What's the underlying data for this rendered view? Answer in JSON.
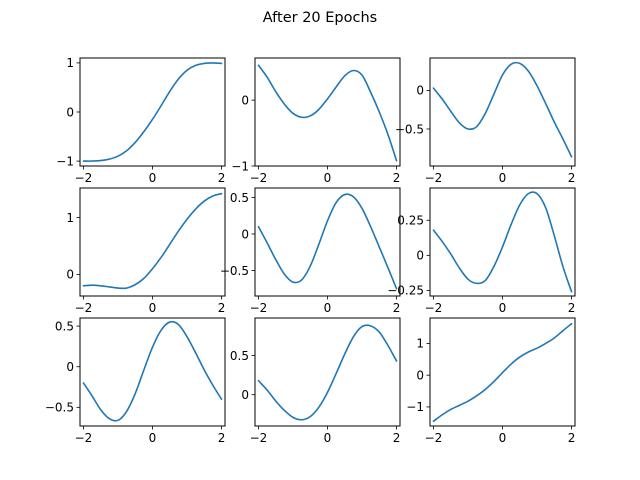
{
  "figure": {
    "title": "After 20 Epochs",
    "line_color": "#1f77b4"
  },
  "chart_data": [
    {
      "type": "line",
      "title": "",
      "xlabel": "",
      "ylabel": "",
      "xlim": [
        -2.1,
        2.1
      ],
      "ylim": [
        -1.1,
        1.1
      ],
      "xticks": [
        -2,
        0,
        2
      ],
      "yticks": [
        -1,
        0,
        1
      ],
      "series": [
        {
          "x": [
            -2,
            -1.75,
            -1.5,
            -1.25,
            -1,
            -0.75,
            -0.5,
            -0.25,
            0,
            0.25,
            0.5,
            0.75,
            1,
            1.25,
            1.5,
            1.75,
            2
          ],
          "y": [
            -1.0,
            -1.0,
            -0.99,
            -0.96,
            -0.9,
            -0.79,
            -0.62,
            -0.4,
            -0.15,
            0.13,
            0.42,
            0.67,
            0.85,
            0.95,
            0.99,
            1.0,
            0.99
          ]
        }
      ]
    },
    {
      "type": "line",
      "title": "",
      "xlabel": "",
      "ylabel": "",
      "xlim": [
        -2.1,
        2.1
      ],
      "ylim": [
        -1.0,
        0.64
      ],
      "xticks": [
        -2,
        0,
        2
      ],
      "yticks": [
        -1,
        0
      ],
      "series": [
        {
          "x": [
            -2,
            -1.75,
            -1.5,
            -1.25,
            -1,
            -0.75,
            -0.5,
            -0.25,
            0,
            0.25,
            0.5,
            0.75,
            1,
            1.25,
            1.5,
            1.75,
            2
          ],
          "y": [
            0.53,
            0.35,
            0.13,
            -0.06,
            -0.2,
            -0.26,
            -0.24,
            -0.14,
            0.02,
            0.2,
            0.37,
            0.45,
            0.38,
            0.12,
            -0.18,
            -0.52,
            -0.92
          ]
        }
      ]
    },
    {
      "type": "line",
      "title": "",
      "xlabel": "",
      "ylabel": "",
      "xlim": [
        -2.1,
        2.1
      ],
      "ylim": [
        -0.98,
        0.42
      ],
      "xticks": [
        -2,
        0,
        2
      ],
      "yticks": [
        -0.5,
        0.0
      ],
      "series": [
        {
          "x": [
            -2,
            -1.75,
            -1.5,
            -1.25,
            -1,
            -0.75,
            -0.5,
            -0.25,
            0,
            0.25,
            0.5,
            0.75,
            1,
            1.25,
            1.5,
            1.75,
            2
          ],
          "y": [
            0.03,
            -0.11,
            -0.27,
            -0.42,
            -0.5,
            -0.47,
            -0.3,
            -0.05,
            0.2,
            0.34,
            0.35,
            0.25,
            0.06,
            -0.17,
            -0.41,
            -0.63,
            -0.86
          ]
        }
      ]
    },
    {
      "type": "line",
      "title": "",
      "xlabel": "",
      "ylabel": "",
      "xlim": [
        -2.1,
        2.1
      ],
      "ylim": [
        -0.38,
        1.52
      ],
      "xticks": [
        -2,
        0,
        2
      ],
      "yticks": [
        0,
        1
      ],
      "series": [
        {
          "x": [
            -2,
            -1.75,
            -1.5,
            -1.25,
            -1,
            -0.75,
            -0.5,
            -0.25,
            0,
            0.25,
            0.5,
            0.75,
            1,
            1.25,
            1.5,
            1.75,
            2
          ],
          "y": [
            -0.2,
            -0.19,
            -0.2,
            -0.22,
            -0.24,
            -0.24,
            -0.18,
            -0.07,
            0.1,
            0.3,
            0.53,
            0.76,
            0.97,
            1.15,
            1.29,
            1.38,
            1.42
          ]
        }
      ]
    },
    {
      "type": "line",
      "title": "",
      "xlabel": "",
      "ylabel": "",
      "xlim": [
        -2.1,
        2.1
      ],
      "ylim": [
        -0.85,
        0.63
      ],
      "xticks": [
        -2,
        0,
        2
      ],
      "yticks": [
        -0.5,
        0.0,
        0.5
      ],
      "series": [
        {
          "x": [
            -2,
            -1.75,
            -1.5,
            -1.25,
            -1,
            -0.75,
            -0.5,
            -0.25,
            0,
            0.25,
            0.5,
            0.75,
            1,
            1.25,
            1.5,
            1.75,
            2
          ],
          "y": [
            0.1,
            -0.12,
            -0.35,
            -0.55,
            -0.66,
            -0.63,
            -0.44,
            -0.14,
            0.18,
            0.43,
            0.54,
            0.51,
            0.35,
            0.1,
            -0.18,
            -0.46,
            -0.75
          ]
        }
      ]
    },
    {
      "type": "line",
      "title": "",
      "xlabel": "",
      "ylabel": "",
      "xlim": [
        -2.1,
        2.1
      ],
      "ylim": [
        -0.29,
        0.48
      ],
      "xticks": [
        -2,
        0,
        2
      ],
      "yticks": [
        -0.25,
        0.0,
        0.25
      ],
      "series": [
        {
          "x": [
            -2,
            -1.75,
            -1.5,
            -1.25,
            -1,
            -0.75,
            -0.5,
            -0.25,
            0,
            0.25,
            0.5,
            0.75,
            1,
            1.25,
            1.5,
            1.75,
            2
          ],
          "y": [
            0.18,
            0.1,
            0.01,
            -0.09,
            -0.17,
            -0.2,
            -0.18,
            -0.08,
            0.06,
            0.22,
            0.36,
            0.44,
            0.44,
            0.34,
            0.14,
            -0.08,
            -0.26
          ]
        }
      ]
    },
    {
      "type": "line",
      "title": "",
      "xlabel": "",
      "ylabel": "",
      "xlim": [
        -2.1,
        2.1
      ],
      "ylim": [
        -0.73,
        0.6
      ],
      "xticks": [
        -2,
        0,
        2
      ],
      "yticks": [
        -0.5,
        0.0,
        0.5
      ],
      "series": [
        {
          "x": [
            -2,
            -1.75,
            -1.5,
            -1.25,
            -1,
            -0.75,
            -0.5,
            -0.25,
            0,
            0.25,
            0.5,
            0.75,
            1,
            1.25,
            1.5,
            1.75,
            2
          ],
          "y": [
            -0.2,
            -0.36,
            -0.53,
            -0.64,
            -0.66,
            -0.55,
            -0.33,
            -0.04,
            0.24,
            0.45,
            0.55,
            0.52,
            0.37,
            0.17,
            -0.04,
            -0.23,
            -0.4
          ]
        }
      ]
    },
    {
      "type": "line",
      "title": "",
      "xlabel": "",
      "ylabel": "",
      "xlim": [
        -2.1,
        2.1
      ],
      "ylim": [
        -0.4,
        0.98
      ],
      "xticks": [
        -2,
        0,
        2
      ],
      "yticks": [
        0.0,
        0.5
      ],
      "series": [
        {
          "x": [
            -2,
            -1.75,
            -1.5,
            -1.25,
            -1,
            -0.75,
            -0.5,
            -0.25,
            0,
            0.25,
            0.5,
            0.75,
            1,
            1.25,
            1.5,
            1.75,
            2
          ],
          "y": [
            0.18,
            0.06,
            -0.08,
            -0.2,
            -0.29,
            -0.32,
            -0.28,
            -0.16,
            0.03,
            0.27,
            0.52,
            0.74,
            0.87,
            0.88,
            0.8,
            0.63,
            0.43
          ]
        }
      ]
    },
    {
      "type": "line",
      "title": "",
      "xlabel": "",
      "ylabel": "",
      "xlim": [
        -2.1,
        2.1
      ],
      "ylim": [
        -1.6,
        1.8
      ],
      "xticks": [
        -2,
        0,
        2
      ],
      "yticks": [
        -1,
        0,
        1
      ],
      "series": [
        {
          "x": [
            -2,
            -1.75,
            -1.5,
            -1.25,
            -1,
            -0.75,
            -0.5,
            -0.25,
            0,
            0.25,
            0.5,
            0.75,
            1,
            1.25,
            1.5,
            1.75,
            2
          ],
          "y": [
            -1.45,
            -1.25,
            -1.08,
            -0.95,
            -0.82,
            -0.65,
            -0.45,
            -0.2,
            0.08,
            0.35,
            0.57,
            0.73,
            0.85,
            1.0,
            1.17,
            1.4,
            1.62
          ]
        }
      ]
    }
  ]
}
